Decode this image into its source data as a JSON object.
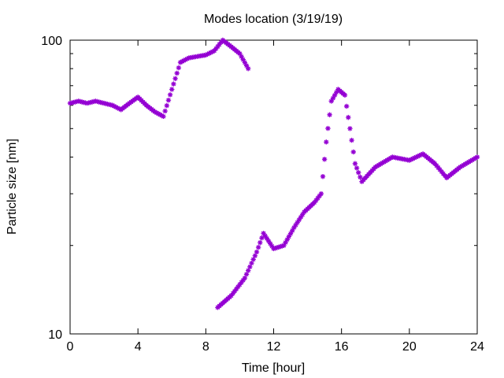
{
  "chart_data": {
    "type": "scatter",
    "title": "Modes location (3/19/19)",
    "xlabel": "Time [hour]",
    "ylabel": "Particle size [nm]",
    "xlim": [
      0,
      24
    ],
    "ylim": [
      10,
      100
    ],
    "y_scale": "log",
    "grid": false,
    "legend": "none",
    "xticks": [
      0,
      4,
      8,
      12,
      16,
      20,
      24
    ],
    "xtick_labels": [
      "0",
      "4",
      "8",
      "12",
      "16",
      "20",
      "24"
    ],
    "yticks": [
      10,
      100
    ],
    "ytick_labels": [
      "10",
      "100"
    ],
    "marker": "asterisk",
    "color": "#9400d3",
    "series": [
      {
        "x": [
          0,
          0.5,
          1,
          1.5,
          2,
          2.5,
          3,
          3.5,
          4,
          4.5,
          5,
          5.5,
          6,
          6.5,
          7,
          7.5,
          8,
          8.5,
          9,
          9.5,
          10,
          10.5
        ],
        "y": [
          61,
          62,
          61,
          62,
          61,
          60,
          58,
          61,
          64,
          60,
          57,
          55,
          68,
          84,
          87,
          88,
          89,
          92,
          100,
          95,
          90,
          80
        ]
      },
      {
        "x": [
          8.7,
          9.5,
          10.3,
          11,
          11.4,
          12,
          12.6,
          13.2,
          13.8,
          14.4,
          14.8,
          15.1,
          15.4,
          15.8,
          16.2,
          16.5,
          16.8,
          17.2,
          18,
          19,
          20,
          20.8,
          21.5,
          22.2,
          23,
          24
        ],
        "y": [
          12.3,
          13.5,
          15.5,
          19,
          22,
          19.5,
          20,
          23,
          26,
          28,
          30,
          45,
          62,
          68,
          65,
          50,
          38,
          33,
          37,
          40,
          39,
          41,
          38,
          34,
          37,
          40
        ]
      }
    ]
  }
}
